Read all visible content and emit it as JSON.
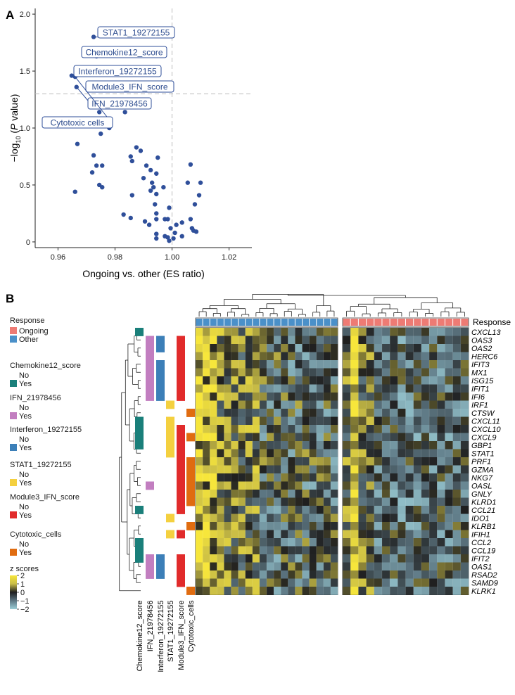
{
  "panel_labels": {
    "a": "A",
    "b": "B"
  },
  "chart_data": [
    {
      "type": "scatter",
      "panel": "A",
      "xlabel": "Ongoing vs. other (ES ratio)",
      "ylabel_prefix": "−log",
      "ylabel_sub": "10",
      "ylabel_italic": "P",
      "ylabel_suffix": " value)",
      "ylabel_open": " (",
      "xlim": [
        0.952,
        1.028
      ],
      "ylim": [
        -0.05,
        2.05
      ],
      "xticks": [
        0.96,
        0.98,
        1.0,
        1.02
      ],
      "xtick_labels": [
        "0.96",
        "0.98",
        "1.00",
        "1.02"
      ],
      "yticks": [
        0,
        0.5,
        1.0,
        1.5,
        2.0
      ],
      "ytick_labels": [
        "0",
        "0.5",
        "1.0",
        "1.5",
        "2.0"
      ],
      "vline": 1.0,
      "hline": 1.3,
      "point_color": "#2f4f9a",
      "callouts": [
        {
          "label": "STAT1_19272155",
          "x": 0.9725,
          "y": 1.8
        },
        {
          "label": "Chemokine12_score",
          "x": 0.9735,
          "y": 1.63
        },
        {
          "label": "Interferon_19272155",
          "x": 0.9648,
          "y": 1.46
        },
        {
          "label": "Module3_IFN_score",
          "x": 0.9728,
          "y": 1.38
        },
        {
          "label": "IFN_21978456",
          "x": 0.9665,
          "y": 1.36
        },
        {
          "label": "Cytotoxic cells",
          "x": 0.966,
          "y": 1.45
        }
      ],
      "points": [
        [
          0.9725,
          1.8
        ],
        [
          0.9735,
          1.63
        ],
        [
          0.9648,
          1.46
        ],
        [
          0.966,
          1.45
        ],
        [
          0.9728,
          1.38
        ],
        [
          0.9665,
          1.36
        ],
        [
          0.9745,
          1.14
        ],
        [
          0.9835,
          1.14
        ],
        [
          0.978,
          1.0
        ],
        [
          0.975,
          0.95
        ],
        [
          0.9668,
          0.86
        ],
        [
          0.9875,
          0.83
        ],
        [
          0.989,
          0.8
        ],
        [
          0.9725,
          0.76
        ],
        [
          0.9855,
          0.75
        ],
        [
          0.995,
          0.74
        ],
        [
          0.986,
          0.71
        ],
        [
          0.9735,
          0.67
        ],
        [
          0.9755,
          0.67
        ],
        [
          0.991,
          0.67
        ],
        [
          0.9925,
          0.63
        ],
        [
          1.0065,
          0.68
        ],
        [
          0.972,
          0.61
        ],
        [
          0.9945,
          0.6
        ],
        [
          1.01,
          0.52
        ],
        [
          0.99,
          0.56
        ],
        [
          0.993,
          0.52
        ],
        [
          0.9745,
          0.5
        ],
        [
          1.0055,
          0.52
        ],
        [
          0.9755,
          0.48
        ],
        [
          0.9935,
          0.48
        ],
        [
          0.997,
          0.48
        ],
        [
          0.9925,
          0.45
        ],
        [
          0.9945,
          0.42
        ],
        [
          0.966,
          0.44
        ],
        [
          0.986,
          0.41
        ],
        [
          1.0095,
          0.41
        ],
        [
          0.994,
          0.33
        ],
        [
          1.008,
          0.33
        ],
        [
          0.999,
          0.3
        ],
        [
          0.9945,
          0.25
        ],
        [
          0.983,
          0.24
        ],
        [
          0.9855,
          0.21
        ],
        [
          0.9945,
          0.2
        ],
        [
          0.9975,
          0.2
        ],
        [
          0.9985,
          0.2
        ],
        [
          1.0065,
          0.2
        ],
        [
          0.9905,
          0.18
        ],
        [
          1.0035,
          0.17
        ],
        [
          0.992,
          0.15
        ],
        [
          1.0015,
          0.15
        ],
        [
          0.9995,
          0.12
        ],
        [
          1.007,
          0.12
        ],
        [
          1.0075,
          0.1
        ],
        [
          1.0085,
          0.09
        ],
        [
          1.001,
          0.08
        ],
        [
          0.9945,
          0.07
        ],
        [
          0.9975,
          0.05
        ],
        [
          1.0035,
          0.05
        ],
        [
          1.0005,
          0.03
        ],
        [
          0.999,
          0.01
        ],
        [
          0.9985,
          0.04
        ],
        [
          0.9945,
          0.03
        ]
      ]
    },
    {
      "type": "heatmap",
      "panel": "B",
      "column_annotation_label": "Response",
      "groups": [
        {
          "name": "Other",
          "columns": 20,
          "color": "#4a90c9"
        },
        {
          "name": "Ongoing",
          "columns": 16,
          "color": "#ee7b74"
        }
      ],
      "genes": [
        "CXCL13",
        "OAS3",
        "OAS2",
        "HERC6",
        "IFIT3",
        "MX1",
        "ISG15",
        "IFIT1",
        "IFI6",
        "IRF1",
        "CTSW",
        "CXCL11",
        "CXCL10",
        "CXCL9",
        "GBP1",
        "STAT1",
        "PRF1",
        "GZMA",
        "NKG7",
        "OASL",
        "GNLY",
        "KLRD1",
        "CCL21",
        "IDO1",
        "KLRB1",
        "IFIH1",
        "CCL2",
        "CCL19",
        "IFIT2",
        "OAS1",
        "RSAD2",
        "SAMD9",
        "KLRK1"
      ],
      "row_annotation_tracks": [
        {
          "name": "Chemokine12_score",
          "color": "#1a7f7a",
          "yes_rows": [
            0,
            11,
            12,
            13,
            14,
            22,
            26,
            27,
            28
          ]
        },
        {
          "name": "IFN_21978456",
          "color": "#c27ec0",
          "yes_rows": [
            1,
            2,
            3,
            4,
            5,
            6,
            7,
            8,
            19,
            28,
            29,
            30
          ]
        },
        {
          "name": "Interferon_19272155",
          "color": "#3c7fb8",
          "yes_rows": [
            1,
            2,
            4,
            5,
            6,
            7,
            8,
            28,
            29,
            30
          ]
        },
        {
          "name": "STAT1_19272155",
          "color": "#f4d03f",
          "yes_rows": [
            9,
            11,
            12,
            13,
            14,
            15,
            23,
            25
          ]
        },
        {
          "name": "Module3_IFN_score",
          "color": "#e12b2b",
          "yes_rows": [
            1,
            2,
            3,
            4,
            5,
            6,
            7,
            8,
            12,
            13,
            14,
            15,
            16,
            17,
            18,
            19,
            20,
            21,
            22,
            25,
            28,
            29,
            30,
            31
          ]
        },
        {
          "name": "Cytotoxic_cells",
          "color": "#e06c10",
          "yes_rows": [
            10,
            13,
            16,
            17,
            18,
            19,
            20,
            21,
            24,
            32
          ]
        }
      ],
      "legend": {
        "response_title": "Response",
        "response_items": [
          {
            "label": "Ongoing",
            "color": "#ee7b74"
          },
          {
            "label": "Other",
            "color": "#4a90c9"
          }
        ],
        "no_label": "No",
        "yes_label": "Yes",
        "tracks": [
          {
            "title": "Chemokine12_score",
            "yes_color": "#1a7f7a"
          },
          {
            "title": "IFN_21978456",
            "yes_color": "#c27ec0"
          },
          {
            "title": "Interferon_19272155",
            "yes_color": "#3c7fb8"
          },
          {
            "title": "STAT1_19272155",
            "yes_color": "#f4d03f"
          },
          {
            "title": "Module3_IFN_score",
            "yes_color": "#e12b2b"
          },
          {
            "title": "Cytotoxic_cells",
            "yes_color": "#e06c10"
          }
        ],
        "zscore_title": "z scores",
        "zscore_ticks": [
          "2",
          "1",
          "0",
          "−1",
          "−2"
        ],
        "zscore_colors": [
          "#f7e63b",
          "#c9bd46",
          "#1f1f1f",
          "#5d7783",
          "#9ccfd8"
        ]
      }
    }
  ]
}
